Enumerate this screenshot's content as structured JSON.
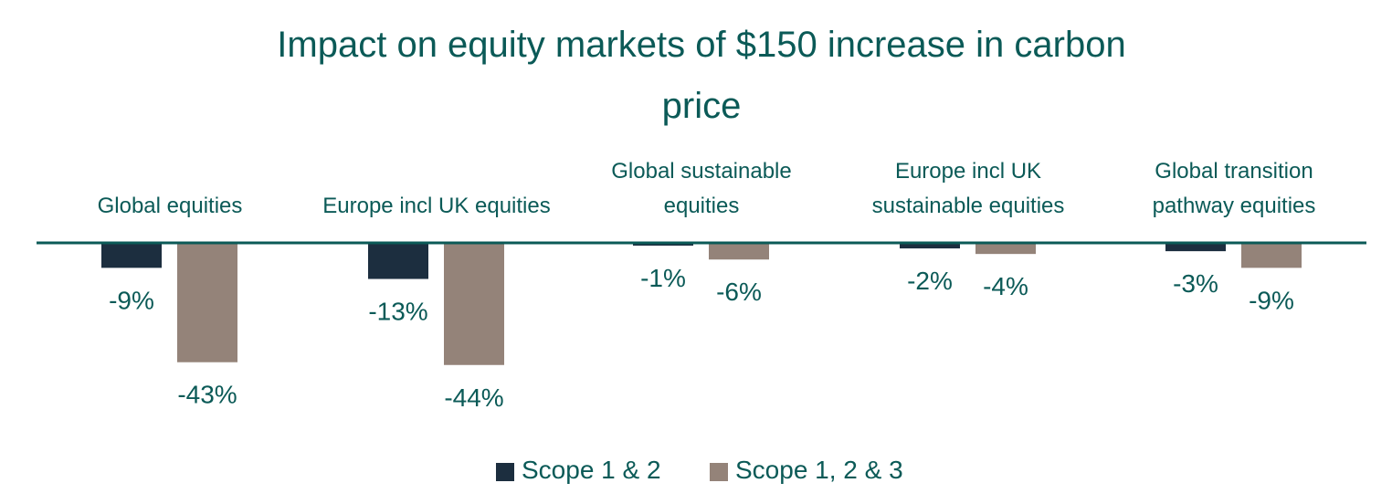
{
  "chart_data": {
    "type": "bar",
    "title_lines": [
      "Impact on equity markets of $150 increase in carbon",
      "price"
    ],
    "categories": [
      [
        "Global equities"
      ],
      [
        "Europe incl UK equities"
      ],
      [
        "Global sustainable",
        "equities"
      ],
      [
        "Europe incl UK",
        "sustainable equities"
      ],
      [
        "Global transition",
        "pathway equities"
      ]
    ],
    "series": [
      {
        "name": "Scope 1 & 2",
        "values": [
          -9,
          -13,
          -1,
          -2,
          -3
        ],
        "labels": [
          "-9%",
          "-13%",
          "-1%",
          "-2%",
          "-3%"
        ]
      },
      {
        "name": "Scope 1, 2 & 3",
        "values": [
          -43,
          -44,
          -6,
          -4,
          -9
        ],
        "labels": [
          "-43%",
          "-44%",
          "-6%",
          "-4%",
          "-9%"
        ]
      }
    ],
    "ylim": [
      -44,
      0
    ],
    "xlabel": "",
    "ylabel": "",
    "grid": false,
    "legend_position": "bottom-center",
    "colors": {
      "series": [
        "#1c2e3f",
        "#948379"
      ],
      "axis": "#0b5a57",
      "text": "#0b5a57"
    }
  }
}
